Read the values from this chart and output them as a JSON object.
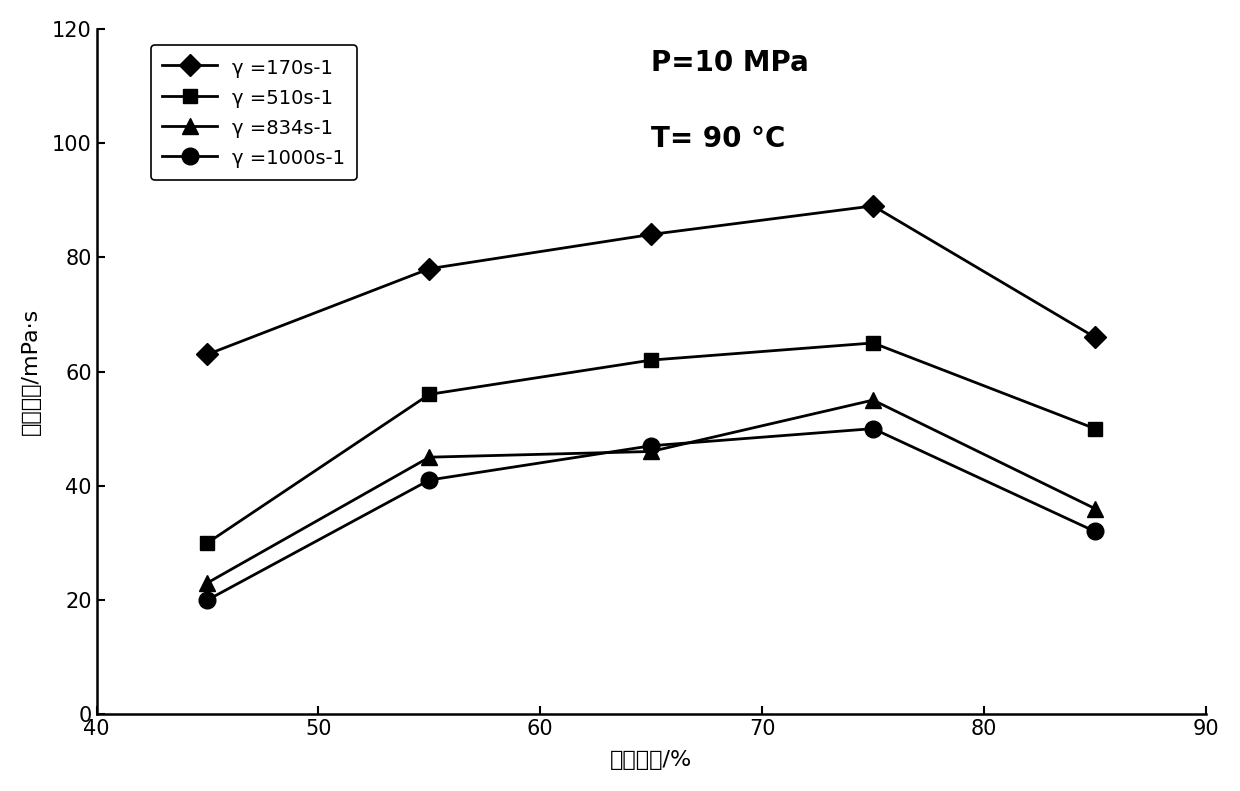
{
  "series": [
    {
      "label": "γ =170s-1",
      "marker": "D",
      "x": [
        45,
        55,
        65,
        75,
        85
      ],
      "y": [
        63,
        78,
        84,
        89,
        66
      ]
    },
    {
      "label": "γ =510s-1",
      "marker": "s",
      "x": [
        45,
        55,
        65,
        75,
        85
      ],
      "y": [
        30,
        56,
        62,
        65,
        50
      ]
    },
    {
      "label": "γ =834s-1",
      "marker": "^",
      "x": [
        45,
        55,
        65,
        75,
        85
      ],
      "y": [
        23,
        45,
        46,
        55,
        36
      ]
    },
    {
      "label": "γ =1000s-1",
      "marker": "o",
      "x": [
        45,
        55,
        65,
        75,
        85
      ],
      "y": [
        20,
        41,
        47,
        50,
        32
      ]
    }
  ],
  "xlabel": "泡沫质量/%",
  "ylabel": "有效粘度/mPa·s",
  "xlim": [
    40,
    90
  ],
  "ylim": [
    0,
    120
  ],
  "xticks": [
    40,
    50,
    60,
    70,
    80,
    90
  ],
  "yticks": [
    0,
    20,
    40,
    60,
    80,
    100,
    120
  ],
  "annotation_line1": "P=10 MPa",
  "annotation_line2": "T= 90 °C",
  "color": "black",
  "linewidth": 2.0,
  "marker_sizes": [
    11,
    10,
    11,
    12
  ]
}
